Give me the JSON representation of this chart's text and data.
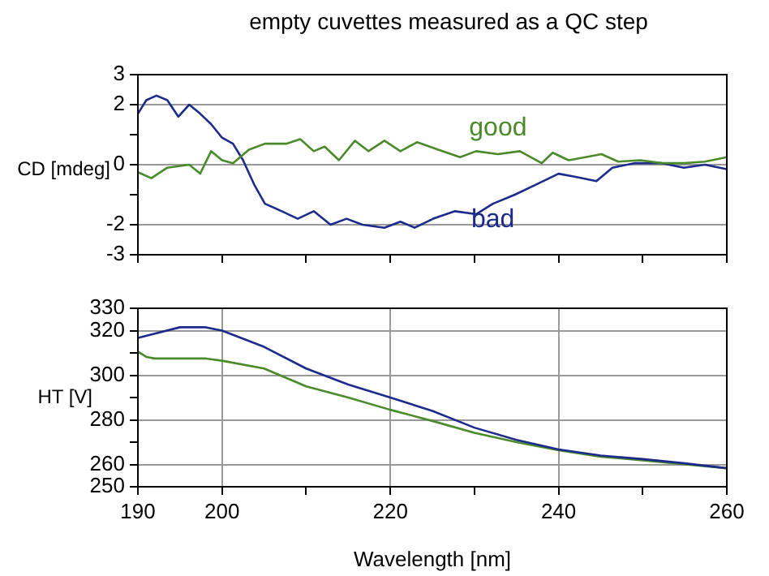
{
  "chart_data": [
    {
      "type": "line",
      "title": "empty cuvettes measured as a QC step",
      "ylabel": "CD [mdeg]",
      "xlim": [
        190,
        260
      ],
      "xticks": [
        {
          "value": 190,
          "label": null
        },
        {
          "value": 200,
          "label": null
        },
        {
          "value": 210,
          "label": null
        },
        {
          "value": 220,
          "label": null
        },
        {
          "value": 230,
          "label": null
        },
        {
          "value": 240,
          "label": null
        },
        {
          "value": 250,
          "label": null
        },
        {
          "value": 260,
          "label": null
        }
      ],
      "ylim": [
        -3,
        3
      ],
      "yticks": [
        -3,
        -2,
        {
          "value": -1,
          "label": null
        },
        0,
        {
          "value": 1,
          "label": null
        },
        2,
        3
      ],
      "grid": true,
      "tick_labels": "y",
      "series": [
        {
          "name": "good",
          "color": "#4a8a2a",
          "x": [
            190,
            191.6,
            193.5,
            196.1,
            197.4,
            198.7,
            200,
            201.3,
            203.2,
            205.1,
            207.7,
            209.3,
            210.9,
            212.2,
            213.9,
            215.8,
            217.4,
            219.3,
            221.2,
            223.2,
            225.7,
            228.3,
            230.2,
            232.8,
            235.4,
            238,
            239.3,
            241.2,
            243.2,
            245.1,
            247.1,
            249.7,
            252.3,
            254.9,
            257.4,
            260
          ],
          "values": [
            -0.25,
            -0.45,
            -0.1,
            0,
            -0.3,
            0.45,
            0.15,
            0.05,
            0.5,
            0.7,
            0.7,
            0.85,
            0.45,
            0.6,
            0.15,
            0.8,
            0.45,
            0.8,
            0.45,
            0.75,
            0.5,
            0.25,
            0.45,
            0.35,
            0.45,
            0.05,
            0.4,
            0.15,
            0.25,
            0.35,
            0.1,
            0.15,
            0.05,
            0.05,
            0.1,
            0.25
          ]
        },
        {
          "name": "bad",
          "color": "#1c2a8c",
          "x": [
            190,
            191,
            192.2,
            193.5,
            194.8,
            196.1,
            197.4,
            198.7,
            200,
            201.3,
            202.5,
            203.8,
            205.1,
            207.1,
            209,
            210.9,
            212.9,
            214.8,
            216.7,
            219.3,
            221.2,
            222.9,
            225.1,
            227.7,
            230.2,
            232.2,
            234.8,
            237.4,
            240,
            241.9,
            244.5,
            246.4,
            249,
            252.3,
            254.9,
            257.4,
            260
          ],
          "values": [
            1.7,
            2.15,
            2.3,
            2.15,
            1.6,
            2.0,
            1.7,
            1.35,
            0.9,
            0.7,
            0.15,
            -0.65,
            -1.3,
            -1.55,
            -1.8,
            -1.55,
            -2.0,
            -1.8,
            -2.0,
            -2.1,
            -1.9,
            -2.1,
            -1.8,
            -1.55,
            -1.65,
            -1.3,
            -1.0,
            -0.65,
            -0.3,
            -0.4,
            -0.55,
            -0.1,
            0.05,
            0.05,
            -0.1,
            0,
            -0.15
          ]
        }
      ]
    },
    {
      "type": "line",
      "ylabel": "HT [V]",
      "xlabel": "Wavelength [nm]",
      "xlim": [
        190,
        260
      ],
      "xticks": [
        190,
        200,
        {
          "value": 210,
          "label": null
        },
        220,
        {
          "value": 230,
          "label": null
        },
        240,
        {
          "value": 250,
          "label": null
        },
        260
      ],
      "ylim": [
        250,
        330
      ],
      "yticks": [
        250,
        260,
        {
          "value": 270,
          "label": null
        },
        280,
        {
          "value": 290,
          "label": null
        },
        300,
        {
          "value": 310,
          "label": null
        },
        320,
        330
      ],
      "grid": true,
      "series": [
        {
          "color": "#1c2a8c",
          "x": [
            190,
            195,
            198,
            200,
            205,
            210,
            215,
            220,
            225,
            230,
            235,
            240,
            245,
            250,
            255,
            260
          ],
          "values": [
            316.7,
            321.5,
            321.5,
            320,
            312.7,
            303,
            295.8,
            290,
            284,
            276.5,
            271,
            266.7,
            264,
            262.4,
            260.5,
            258.3
          ]
        },
        {
          "color": "#4a8a2a",
          "x": [
            190,
            191,
            192,
            198,
            200,
            205,
            210,
            215,
            220,
            225,
            230,
            235,
            240,
            245,
            250,
            260
          ],
          "values": [
            310.6,
            308.2,
            307.5,
            307.5,
            306.5,
            303,
            295,
            290,
            284.5,
            279.5,
            274.2,
            270,
            266.4,
            263.5,
            261.8,
            258.3
          ]
        }
      ]
    }
  ]
}
